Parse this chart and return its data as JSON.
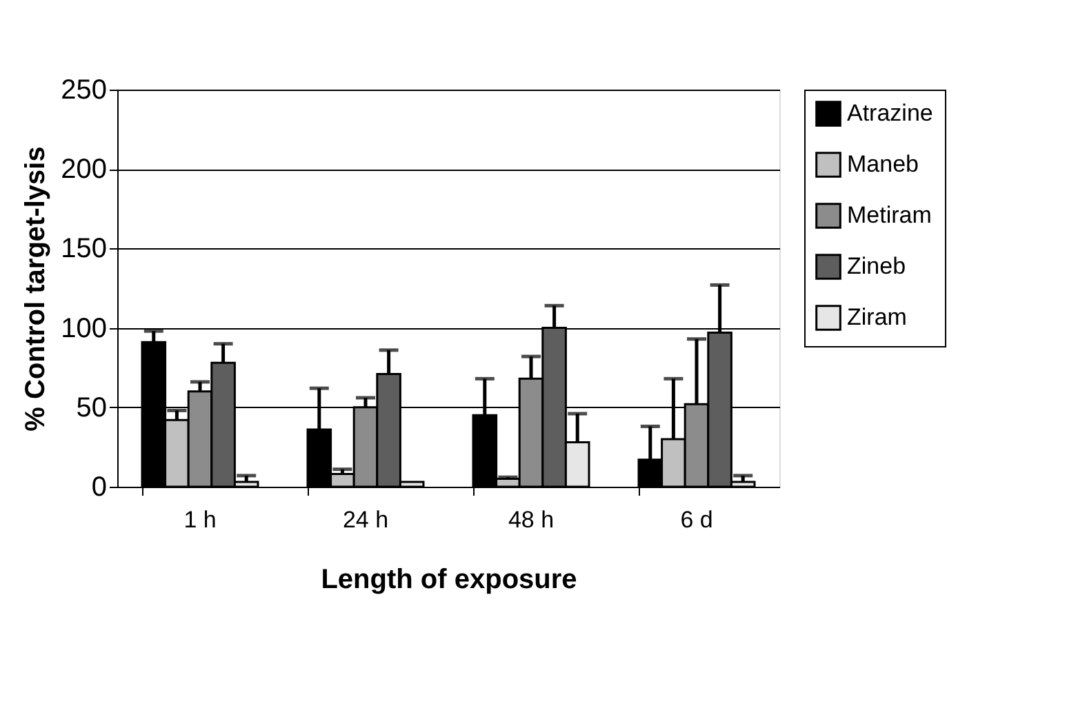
{
  "chart_data": {
    "type": "bar",
    "xlabel": "Length of exposure",
    "ylabel": "% Control target-lysis",
    "categories": [
      "1 h",
      "24 h",
      "48 h",
      "6 d"
    ],
    "series": [
      {
        "name": "Atrazine",
        "color": "#000000",
        "values": [
          91,
          36,
          45,
          17
        ],
        "errors": [
          [
            91,
            98
          ],
          [
            36,
            62
          ],
          [
            45,
            68
          ],
          [
            17,
            38
          ]
        ]
      },
      {
        "name": "Maneb",
        "color": "#c0c0c0",
        "values": [
          42,
          8,
          5,
          30
        ],
        "errors": [
          [
            42,
            48
          ],
          [
            8,
            11
          ],
          [
            5,
            6
          ],
          [
            30,
            68
          ]
        ]
      },
      {
        "name": "Metiram",
        "color": "#8c8c8c",
        "values": [
          60,
          50,
          68,
          52
        ],
        "errors": [
          [
            60,
            66
          ],
          [
            50,
            56
          ],
          [
            68,
            82
          ],
          [
            52,
            93
          ]
        ]
      },
      {
        "name": "Zineb",
        "color": "#5e5e5e",
        "values": [
          78,
          71,
          100,
          97
        ],
        "errors": [
          [
            78,
            90
          ],
          [
            71,
            86
          ],
          [
            100,
            114
          ],
          [
            97,
            127
          ]
        ]
      },
      {
        "name": "Ziram",
        "color": "#e6e6e6",
        "values": [
          3,
          3,
          28,
          3
        ],
        "errors": [
          [
            3,
            7
          ],
          null,
          [
            28,
            46
          ],
          [
            3,
            7
          ]
        ]
      }
    ],
    "ylim": [
      0,
      250
    ],
    "yticks": [
      0,
      50,
      100,
      150,
      200,
      250
    ],
    "grid": "y",
    "legend": "right"
  }
}
